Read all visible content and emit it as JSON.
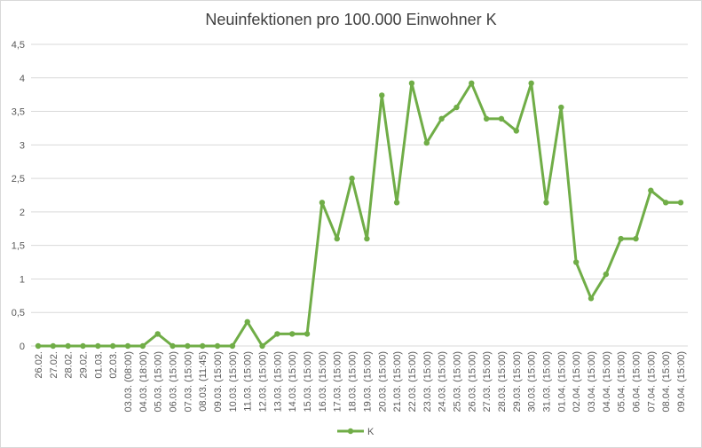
{
  "chart_data": {
    "type": "line",
    "title": "Neuinfektionen pro 100.000 Einwohner K",
    "xlabel": "",
    "ylabel": "",
    "ylim": [
      0,
      4.5
    ],
    "y_ticks": [
      "0",
      "0,5",
      "1",
      "1,5",
      "2",
      "2,5",
      "3",
      "3,5",
      "4",
      "4,5"
    ],
    "grid": "horizontal",
    "legend_position": "bottom",
    "series_color": "#70ad47",
    "categories": [
      "26.02.",
      "27.02.",
      "28.02.",
      "29.02.",
      "01.03.",
      "02.03.",
      "03.03. (08:00)",
      "04.03. (18:00)",
      "05.03. (15:00)",
      "06.03. (15:00)",
      "07.03. (15:00)",
      "08.03. (11:45)",
      "09.03. (15:00)",
      "10.03. (15:00)",
      "11.03. (15:00)",
      "12.03. (15:00)",
      "13.03. (15:00)",
      "14.03. (15:00)",
      "15.03. (15:00)",
      "16.03. (15:00)",
      "17.03. (15:00)",
      "18.03. (15:00)",
      "19.03. (15:00)",
      "20.03. (15:00)",
      "21.03. (15:00)",
      "22.03. (15:00)",
      "23.03. (15:00)",
      "24.03. (15:00)",
      "25.03. (15:00)",
      "26.03. (15:00)",
      "27.03. (15:00)",
      "28.03. (15:00)",
      "29.03. (15:00)",
      "30.03. (15:00)",
      "31.03. (15:00)",
      "01.04. (15:00)",
      "02.04. (15:00)",
      "03.04. (15:00)",
      "04.04. (15:00)",
      "05.04. (15:00)",
      "06.04. (15:00)",
      "07.04. (15:00)",
      "08.04. (15:00)",
      "09.04. (15:00)"
    ],
    "series": [
      {
        "name": "K",
        "values": [
          0,
          0,
          0,
          0,
          0,
          0,
          0,
          0,
          0.18,
          0,
          0,
          0,
          0,
          0,
          0.36,
          0,
          0.18,
          0.18,
          0.18,
          2.14,
          1.6,
          2.5,
          1.6,
          3.74,
          2.14,
          3.92,
          3.03,
          3.39,
          3.56,
          3.92,
          3.39,
          3.39,
          3.21,
          3.92,
          2.14,
          3.56,
          1.25,
          0.71,
          1.07,
          1.6,
          1.6,
          2.32,
          2.14,
          2.14
        ]
      }
    ]
  }
}
